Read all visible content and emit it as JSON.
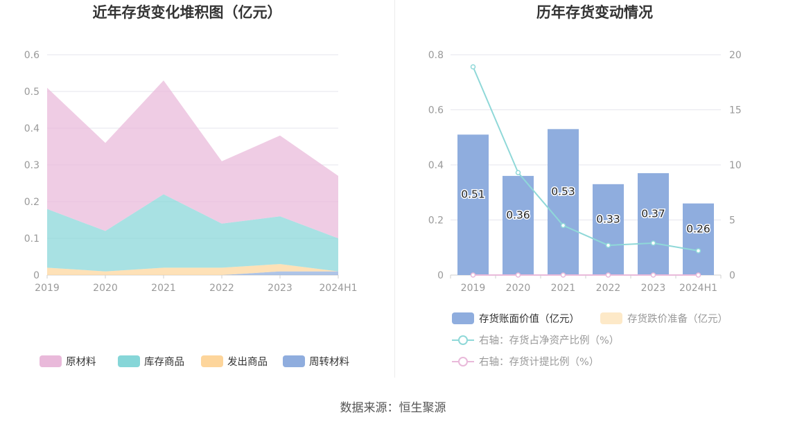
{
  "source_text": "数据来源：恒生聚源",
  "chart_data": [
    {
      "type": "area",
      "stacked": true,
      "title": "近年存货变化堆积图（亿元）",
      "categories": [
        "2019",
        "2020",
        "2021",
        "2022",
        "2023",
        "2024H1"
      ],
      "ylim": [
        0,
        0.6
      ],
      "yticks": [
        "0",
        "0.1",
        "0.2",
        "0.3",
        "0.4",
        "0.5",
        "0.6"
      ],
      "grid": true,
      "legend_position": "bottom",
      "series": [
        {
          "name": "周转材料",
          "color": "#8fadde",
          "values": [
            0.0,
            0.0,
            0.0,
            0.0,
            0.01,
            0.01
          ]
        },
        {
          "name": "发出商品",
          "color": "#fdd59b",
          "values": [
            0.02,
            0.01,
            0.02,
            0.02,
            0.02,
            0.0
          ]
        },
        {
          "name": "库存商品",
          "color": "#86d6d8",
          "values": [
            0.16,
            0.11,
            0.2,
            0.12,
            0.13,
            0.09
          ]
        },
        {
          "name": "原材料",
          "color": "#e9b9da",
          "values": [
            0.33,
            0.24,
            0.31,
            0.17,
            0.22,
            0.17
          ]
        }
      ],
      "legend_order": [
        "原材料",
        "库存商品",
        "发出商品",
        "周转材料"
      ]
    },
    {
      "type": "bar",
      "title": "历年存货变动情况",
      "categories": [
        "2019",
        "2020",
        "2021",
        "2022",
        "2023",
        "2024H1"
      ],
      "ylim": [
        0,
        0.8
      ],
      "yticks": [
        "0",
        "0.2",
        "0.4",
        "0.6",
        "0.8"
      ],
      "y2lim": [
        0,
        20
      ],
      "y2ticks": [
        "0",
        "5",
        "10",
        "15",
        "20"
      ],
      "grid": true,
      "legend_position": "bottom",
      "bars": [
        {
          "name": "存货账面价值（亿元）",
          "color": "#8fadde",
          "values": [
            0.51,
            0.36,
            0.53,
            0.33,
            0.37,
            0.26
          ],
          "labels": [
            "0.51",
            "0.36",
            "0.53",
            "0.33",
            "0.37",
            "0.26"
          ]
        },
        {
          "name": "存货跌价准备（亿元）",
          "color": "#fde9c8",
          "values": [
            0,
            0,
            0,
            0,
            0,
            0
          ]
        }
      ],
      "lines": [
        {
          "name": "右轴：存货占净资产比例（%）",
          "axis": "right",
          "color": "#8fd8d8",
          "values": [
            18.9,
            9.3,
            4.5,
            2.7,
            2.9,
            2.2
          ]
        },
        {
          "name": "右轴：存货计提比例（%）",
          "axis": "right",
          "color": "#e9b9da",
          "values": [
            0,
            0,
            0,
            0,
            0,
            0
          ]
        }
      ]
    }
  ]
}
